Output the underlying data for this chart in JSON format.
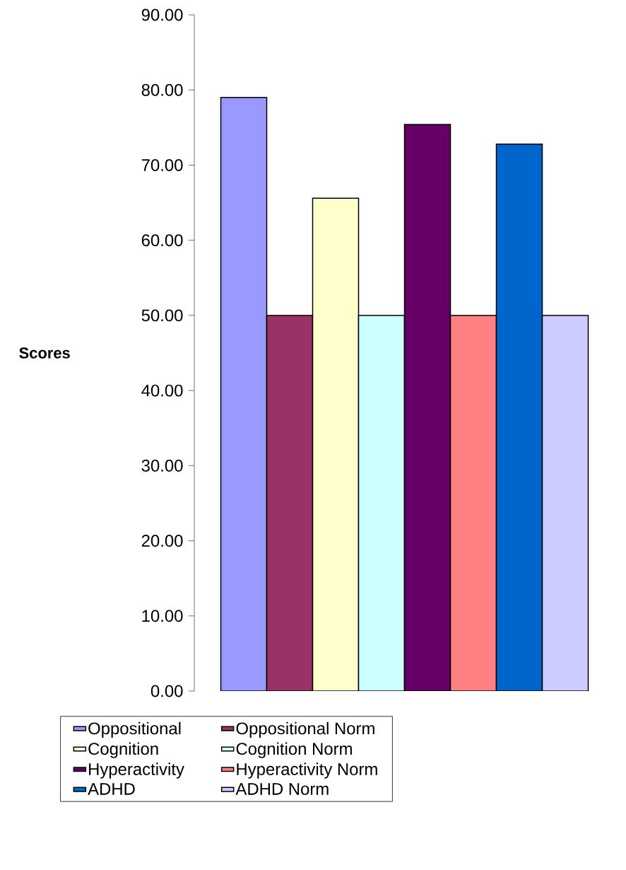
{
  "chart_data": {
    "type": "bar",
    "ylabel": "**Scores**",
    "categories": [
      null
    ],
    "series": [
      {
        "name": "Oppositional",
        "color": "#9999ff",
        "values": [
          79.0
        ]
      },
      {
        "name": "Oppositional Norm",
        "color": "#993366",
        "values": [
          50.0
        ]
      },
      {
        "name": "Cognition",
        "color": "#ffffcc",
        "values": [
          65.6
        ]
      },
      {
        "name": "Cognition Norm",
        "color": "#ccffff",
        "values": [
          50.0
        ]
      },
      {
        "name": "Hyperactivity",
        "color": "#660066",
        "values": [
          75.4
        ]
      },
      {
        "name": "Hyperactivity Norm",
        "color": "#ff8080",
        "values": [
          50.0
        ]
      },
      {
        "name": "ADHD",
        "color": "#0066cc",
        "values": [
          72.8
        ]
      },
      {
        "name": "ADHD Norm",
        "color": "#ccccff",
        "values": [
          50.0
        ]
      }
    ],
    "ylim": [
      0,
      90
    ],
    "yticks": [
      {
        "value": 0,
        "label": "0.00"
      },
      {
        "value": 10,
        "label": "10.00"
      },
      {
        "value": 20,
        "label": "20.00"
      },
      {
        "value": 30,
        "label": "30.00"
      },
      {
        "value": 40,
        "label": "40.00"
      },
      {
        "value": 50,
        "label": "50.00"
      },
      {
        "value": 60,
        "label": "60.00"
      },
      {
        "value": 70,
        "label": "70.00"
      },
      {
        "value": 80,
        "label": "80.00"
      },
      {
        "value": 90,
        "label": "90.00"
      }
    ],
    "legend": "bottom"
  }
}
